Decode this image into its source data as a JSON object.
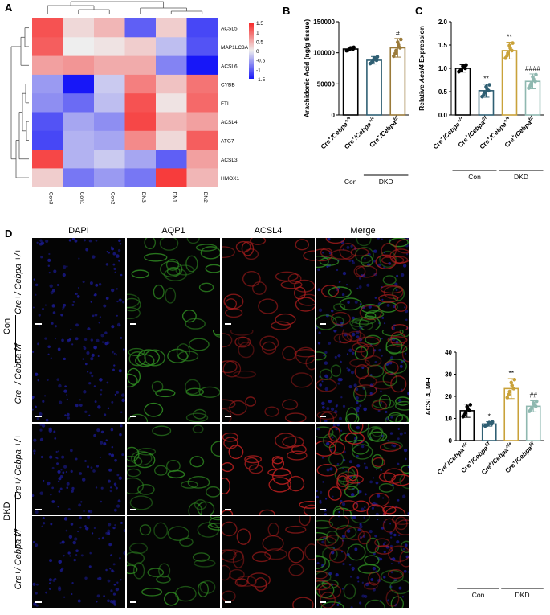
{
  "panels": {
    "A": "A",
    "B": "B",
    "C": "C",
    "D": "D"
  },
  "heatmap": {
    "rows": [
      "ACSL5",
      "MAP1LC3A",
      "ACSL6",
      "CYBB",
      "FTL",
      "ACSL4",
      "ATG7",
      "ACSL3",
      "HMOX1"
    ],
    "cols": [
      "Con3",
      "Con1",
      "Con2",
      "DN3",
      "DN1",
      "DN2"
    ],
    "values": [
      [
        1.4,
        0.2,
        0.5,
        -1.2,
        0.3,
        -1.4
      ],
      [
        1.3,
        0.0,
        0.1,
        0.3,
        -0.4,
        -1.3
      ],
      [
        0.7,
        0.8,
        0.6,
        0.6,
        -0.9,
        -1.8
      ],
      [
        -0.7,
        -1.8,
        -0.3,
        1.0,
        0.4,
        1.1
      ],
      [
        -0.8,
        -1.1,
        -0.4,
        1.4,
        0.1,
        1.2
      ],
      [
        -1.3,
        -0.6,
        -0.8,
        1.5,
        0.5,
        0.7
      ],
      [
        -1.4,
        -0.5,
        -0.6,
        0.9,
        0.2,
        1.3
      ],
      [
        1.5,
        -0.5,
        -0.3,
        -0.6,
        -1.2,
        0.7
      ],
      [
        0.3,
        -1.0,
        -0.7,
        -1.0,
        1.6,
        0.5
      ]
    ],
    "legend_ticks": [
      "1.5",
      "1",
      "0.5",
      "0",
      "-0.5",
      "-1",
      "-1.5"
    ]
  },
  "chart_data": [
    {
      "type": "bar",
      "panel": "B",
      "ylabel": "Arachidonic  Acid (ng/g tissue)",
      "ylim": [
        0,
        150000
      ],
      "yticks": [
        "0",
        "50000",
        "100000",
        "150000"
      ],
      "categories": [
        "Cre+/Cebpa+/+",
        "Cre+/Cebpa+/+",
        "Cre+/Cebpaf/f"
      ],
      "cat_base": [
        "Cre",
        "Cre",
        "Cre"
      ],
      "cat_sup1": [
        "+",
        "+",
        "+"
      ],
      "cat_mid": [
        "/Cebpa",
        "/Cebpa",
        "/Cebpa"
      ],
      "cat_sup2": [
        "+/+",
        "+/+",
        "f/f"
      ],
      "values": [
        106000,
        88000,
        108000
      ],
      "errors": [
        3000,
        6000,
        15000
      ],
      "annotations": [
        "",
        "",
        "#"
      ],
      "groups": [
        {
          "label": "Con",
          "span": [
            0,
            0
          ]
        },
        {
          "label": "DKD",
          "span": [
            1,
            2
          ]
        }
      ],
      "colors": [
        "#000000",
        "#2f5f73",
        "#9a7a3a"
      ]
    },
    {
      "type": "bar",
      "panel": "C",
      "ylabel_pre": "Relative ",
      "ylabel_ital": "Acsl4",
      "ylabel_post": " Expression",
      "ylim": [
        0,
        2.0
      ],
      "yticks": [
        "0.0",
        "0.5",
        "1.0",
        "1.5",
        "2.0"
      ],
      "categories": [
        "Cre+/Cebpa+/+",
        "Cre+/Cebpaf/f",
        "Cre+/Cebpa+/+",
        "Cre+/Cebpaf/f"
      ],
      "cat_base": [
        "Cre",
        "Cre",
        "Cre",
        "Cre"
      ],
      "cat_sup1": [
        "+",
        "+",
        "+",
        "+"
      ],
      "cat_mid": [
        "/Cebpa",
        "/Cebpa",
        "/Cebpa",
        "/Cebpa"
      ],
      "cat_sup2": [
        "+/+",
        "f/f",
        "+/+",
        "f/f"
      ],
      "values": [
        1.0,
        0.52,
        1.38,
        0.72
      ],
      "errors": [
        0.08,
        0.14,
        0.18,
        0.16
      ],
      "annotations": [
        "",
        "**",
        "**",
        "####"
      ],
      "groups": [
        {
          "label": "Con",
          "span": [
            0,
            1
          ]
        },
        {
          "label": "DKD",
          "span": [
            2,
            3
          ]
        }
      ],
      "colors": [
        "#000000",
        "#2f5f73",
        "#c9a23a",
        "#8fb8b0"
      ]
    },
    {
      "type": "bar",
      "panel": "D",
      "ylabel": "ACSL4_MFI",
      "ylim": [
        0,
        40
      ],
      "yticks": [
        "0",
        "10",
        "20",
        "30",
        "40"
      ],
      "categories": [
        "Cre+/Cebpa+/+",
        "Cre+/Cebpaf/f",
        "Cre+/Cebpa+/+",
        "Cre+/Cebpaf/f"
      ],
      "cat_base": [
        "Cre",
        "Cre",
        "Cre",
        "Cre"
      ],
      "cat_sup1": [
        "+",
        "+",
        "+",
        "+"
      ],
      "cat_mid": [
        "/Cebpa",
        "/Cebpa",
        "/Cebpa",
        "/Cebpa"
      ],
      "cat_sup2": [
        "+/+",
        "f/f",
        "+/+",
        "f/f"
      ],
      "values": [
        13.5,
        7.5,
        23.5,
        15.5
      ],
      "errors": [
        3.0,
        1.0,
        4.5,
        2.5
      ],
      "annotations": [
        "",
        "*",
        "**",
        "##"
      ],
      "groups": [
        {
          "label": "Con",
          "span": [
            0,
            1
          ]
        },
        {
          "label": "DKD",
          "span": [
            2,
            3
          ]
        }
      ],
      "colors": [
        "#000000",
        "#2f5f73",
        "#c9a23a",
        "#8fb8b0"
      ]
    }
  ],
  "micrographs": {
    "stains": [
      "DAPI",
      "AQP1",
      "ACSL4",
      "Merge"
    ],
    "rows": [
      "Cre+/ Cebpa +/+",
      "Cre+/ Cebpa f/f",
      "Cre+/ Cebpa +/+",
      "Cre+/ Cebpa f/f"
    ],
    "groups": [
      "Con",
      "DKD"
    ],
    "colors": {
      "dapi": "#1a1a8c",
      "aqp1": "#2f8a22",
      "acsl4": "#b51f1f"
    },
    "acsl4_intensity": [
      0.55,
      0.25,
      0.95,
      0.35
    ]
  }
}
